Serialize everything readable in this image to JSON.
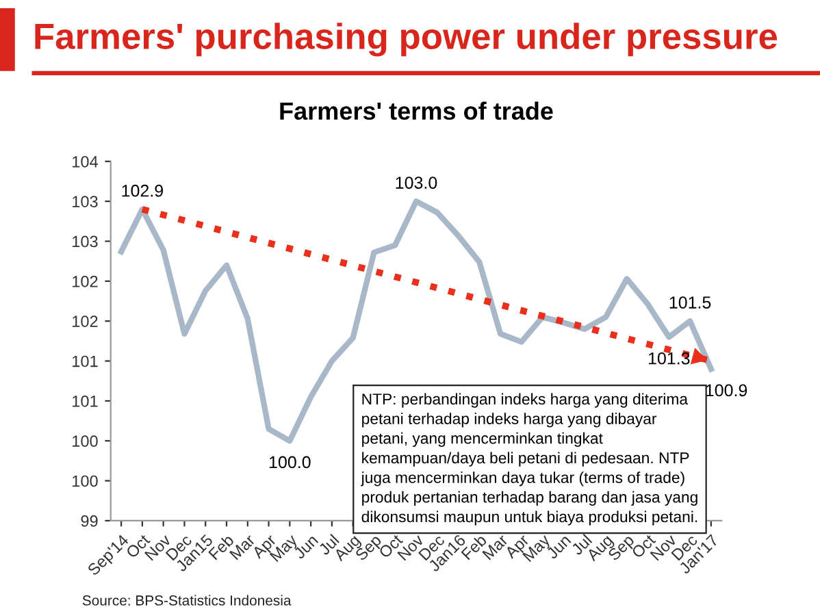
{
  "chart_data": {
    "type": "line",
    "title": "Farmers' terms of trade",
    "subtitle": "Farmers' purchasing power under pressure",
    "categories": [
      "Sep'14",
      "Oct",
      "Nov",
      "Dec",
      "Jan15",
      "Feb",
      "Mar",
      "Apr",
      "May",
      "Jun",
      "Jul",
      "Aug",
      "Sep",
      "Oct",
      "Nov",
      "Dec",
      "Jan16",
      "Feb",
      "Mar",
      "Apr",
      "May",
      "Jun",
      "Jul",
      "Aug",
      "Sep",
      "Oct",
      "Nov",
      "Dec",
      "Jan'17"
    ],
    "series": [
      {
        "color": "#a9b8c9",
        "line_style": "solid",
        "values": [
          102.37,
          102.9,
          102.39,
          101.34,
          101.88,
          102.2,
          101.53,
          100.15,
          100.0,
          100.55,
          101.0,
          101.29,
          102.36,
          102.45,
          103.0,
          102.86,
          102.57,
          102.24,
          101.34,
          101.24,
          101.55,
          101.48,
          101.4,
          101.55,
          102.03,
          101.71,
          101.3,
          101.5,
          100.9
        ],
        "value_labels": [
          null,
          "102.9",
          null,
          null,
          null,
          null,
          null,
          null,
          "100.0",
          null,
          null,
          null,
          null,
          null,
          "103.0",
          null,
          null,
          null,
          null,
          null,
          null,
          null,
          null,
          null,
          null,
          null,
          "101.3",
          "101.5",
          "100.9"
        ]
      },
      {
        "color": "#e8301c",
        "line_style": "dotted",
        "values": [
          null,
          102.9,
          null,
          null,
          null,
          null,
          null,
          null,
          null,
          null,
          null,
          null,
          null,
          null,
          null,
          null,
          null,
          null,
          null,
          null,
          null,
          null,
          null,
          null,
          null,
          null,
          null,
          null,
          101.0
        ]
      }
    ],
    "ylim": [
      99,
      103.5
    ],
    "yticks": [
      99,
      {
        "value": 99.5,
        "label": "100"
      },
      100,
      {
        "value": 100.5,
        "label": "101"
      },
      101,
      {
        "value": 101.5,
        "label": "102"
      },
      102,
      {
        "value": 102.5,
        "label": "103"
      },
      103,
      {
        "value": 103.5,
        "label": "104"
      }
    ],
    "grid": false,
    "legend": false,
    "marker": "none",
    "annotations": [
      {
        "text": "NTP: perbandingan indeks harga yang diterima\npetani terhadap indeks harga yang dibayar\npetani, yang mencerminkan tingkat\nkemampuan/daya beli petani di pedesaan. NTP\njuga mencerminkan daya tukar (terms of trade)\nproduk pertanian terhadap barang dan jasa yang\ndikonsumsi maupun untuk biaya produksi petani."
      },
      "Source: BPS-Statistics Indonesia"
    ]
  }
}
